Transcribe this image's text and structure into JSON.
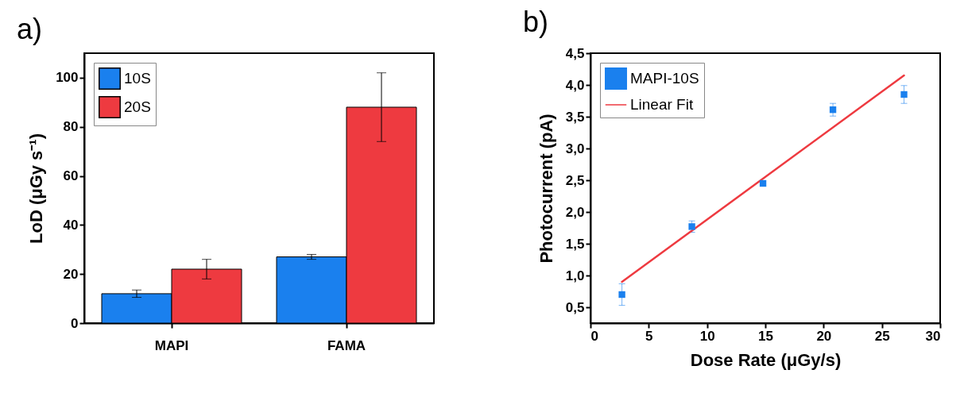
{
  "chart_data": [
    {
      "type": "bar",
      "title": "a)",
      "ylabel": "LoD (μGy s⁻¹)",
      "categories": [
        "MAPI",
        "FAMA"
      ],
      "series": [
        {
          "name": "10S",
          "color": "#1a80ee",
          "values": [
            12,
            27
          ],
          "errors": [
            1.5,
            1
          ]
        },
        {
          "name": "20S",
          "color": "#ee3a40",
          "values": [
            22,
            88
          ],
          "errors": [
            4,
            14
          ]
        }
      ],
      "ylim": [
        0,
        110
      ],
      "yticks": [
        0,
        20,
        40,
        60,
        80,
        100
      ],
      "grid": false,
      "legend": "top left"
    },
    {
      "type": "scatter",
      "title": "b)",
      "xlabel": "Dose Rate (μGy/s)",
      "ylabel": "Photocurrent (pA)",
      "series": [
        {
          "name": "MAPI-10S",
          "type": "scatter",
          "marker": "square",
          "color": "#1a80ee",
          "x": [
            2.7,
            8.7,
            14.8,
            20.8,
            26.9
          ],
          "values": [
            0.7,
            1.77,
            2.45,
            3.61,
            3.85
          ],
          "errors": [
            0.17,
            0.09,
            0.04,
            0.1,
            0.14
          ]
        },
        {
          "name": "Linear Fit",
          "type": "line",
          "color": "#ee3a40",
          "x": [
            2.7,
            26.9
          ],
          "values": [
            0.9,
            4.15
          ]
        }
      ],
      "xlim": [
        0,
        30
      ],
      "xticks": [
        0,
        5,
        10,
        15,
        20,
        25,
        30
      ],
      "ylim": [
        0.25,
        4.5
      ],
      "yticks": [
        {
          "value": 0.5,
          "label": "0,5"
        },
        {
          "value": 1,
          "label": "1,0"
        },
        {
          "value": 1.5,
          "label": "1,5"
        },
        {
          "value": 2,
          "label": "2,0"
        },
        {
          "value": 2.5,
          "label": "2,5"
        },
        {
          "value": 3,
          "label": "3,0"
        },
        {
          "value": 3.5,
          "label": "3,5"
        },
        {
          "value": 4,
          "label": "4,0"
        },
        {
          "value": 4.5,
          "label": "4,5"
        }
      ],
      "grid": false,
      "legend": "top left"
    }
  ]
}
